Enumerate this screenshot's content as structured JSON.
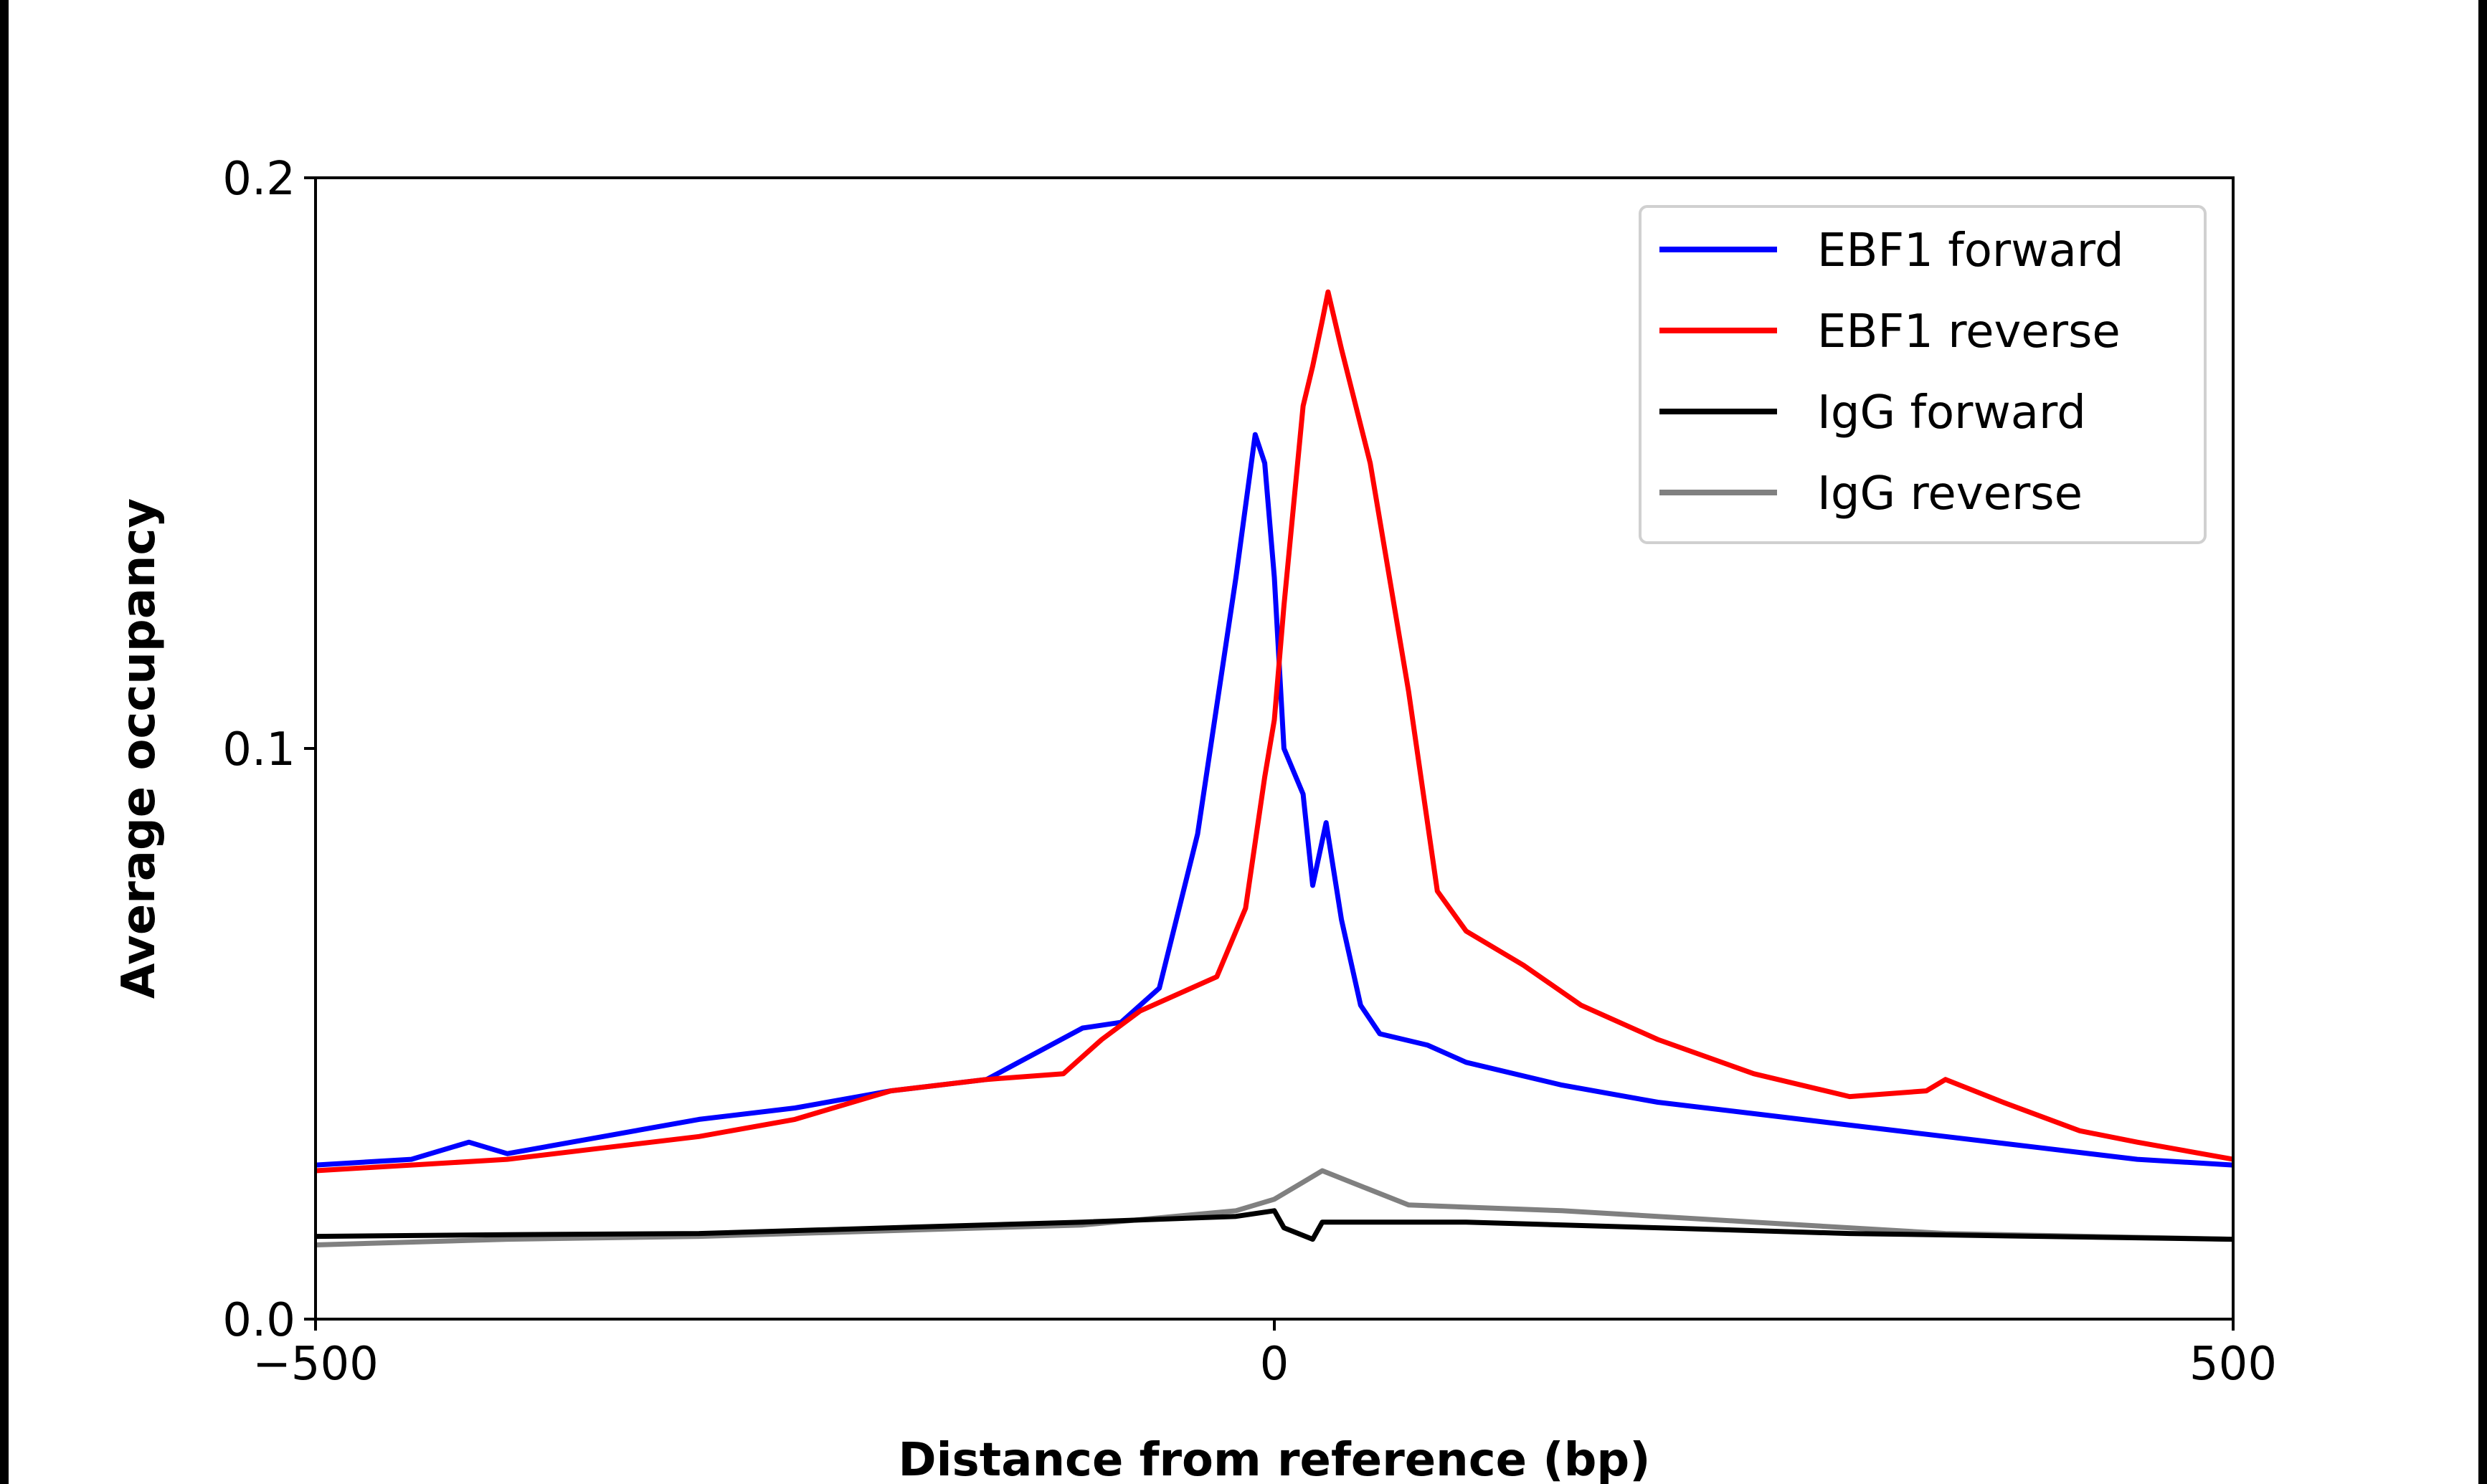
{
  "chart_data": {
    "type": "line",
    "title": "",
    "xlabel": "Distance from reference (bp)",
    "ylabel": "Average occupancy",
    "xlim": [
      -500,
      500
    ],
    "ylim": [
      0.0,
      0.2
    ],
    "xticks": [
      -500,
      0,
      500
    ],
    "xtick_labels": [
      "−500",
      "0",
      "500"
    ],
    "yticks": [
      0.0,
      0.1,
      0.2
    ],
    "ytick_labels": [
      "0.0",
      "0.1",
      "0.2"
    ],
    "grid": false,
    "legend_placement": "top-right",
    "series": [
      {
        "name": "EBF1 forward",
        "color": "#0000ff",
        "x": [
          -500,
          -450,
          -420,
          -400,
          -350,
          -300,
          -250,
          -200,
          -150,
          -100,
          -80,
          -60,
          -40,
          -20,
          -10,
          -5,
          0,
          5,
          15,
          20,
          27,
          35,
          45,
          55,
          80,
          100,
          150,
          200,
          250,
          300,
          350,
          400,
          450,
          500
        ],
        "y": [
          0.027,
          0.028,
          0.031,
          0.029,
          0.032,
          0.035,
          0.037,
          0.04,
          0.042,
          0.051,
          0.052,
          0.058,
          0.085,
          0.13,
          0.155,
          0.15,
          0.13,
          0.1,
          0.092,
          0.076,
          0.087,
          0.07,
          0.055,
          0.05,
          0.048,
          0.045,
          0.041,
          0.038,
          0.036,
          0.034,
          0.032,
          0.03,
          0.028,
          0.027
        ]
      },
      {
        "name": "EBF1 reverse",
        "color": "#ff0000",
        "x": [
          -500,
          -450,
          -400,
          -350,
          -300,
          -250,
          -200,
          -150,
          -110,
          -90,
          -70,
          -50,
          -30,
          -15,
          -5,
          0,
          5,
          15,
          20,
          25,
          28,
          35,
          50,
          70,
          85,
          100,
          130,
          160,
          200,
          250,
          300,
          340,
          350,
          380,
          420,
          450,
          500
        ],
        "y": [
          0.026,
          0.027,
          0.028,
          0.03,
          0.032,
          0.035,
          0.04,
          0.042,
          0.043,
          0.049,
          0.054,
          0.057,
          0.06,
          0.072,
          0.095,
          0.105,
          0.125,
          0.16,
          0.167,
          0.175,
          0.18,
          0.17,
          0.15,
          0.11,
          0.075,
          0.068,
          0.062,
          0.055,
          0.049,
          0.043,
          0.039,
          0.04,
          0.042,
          0.038,
          0.033,
          0.031,
          0.028
        ]
      },
      {
        "name": "IgG forward",
        "color": "#000000",
        "x": [
          -500,
          -400,
          -300,
          -200,
          -100,
          -20,
          0,
          5,
          20,
          25,
          100,
          200,
          300,
          400,
          500
        ],
        "y": [
          0.0145,
          0.0148,
          0.015,
          0.016,
          0.017,
          0.018,
          0.019,
          0.016,
          0.014,
          0.017,
          0.017,
          0.016,
          0.015,
          0.0145,
          0.014
        ]
      },
      {
        "name": "IgG reverse",
        "color": "#808080",
        "x": [
          -500,
          -400,
          -300,
          -200,
          -100,
          -20,
          0,
          15,
          25,
          40,
          70,
          150,
          250,
          350,
          500
        ],
        "y": [
          0.013,
          0.014,
          0.0145,
          0.0155,
          0.0165,
          0.019,
          0.021,
          0.024,
          0.026,
          0.024,
          0.02,
          0.019,
          0.017,
          0.015,
          0.014
        ]
      }
    ]
  }
}
